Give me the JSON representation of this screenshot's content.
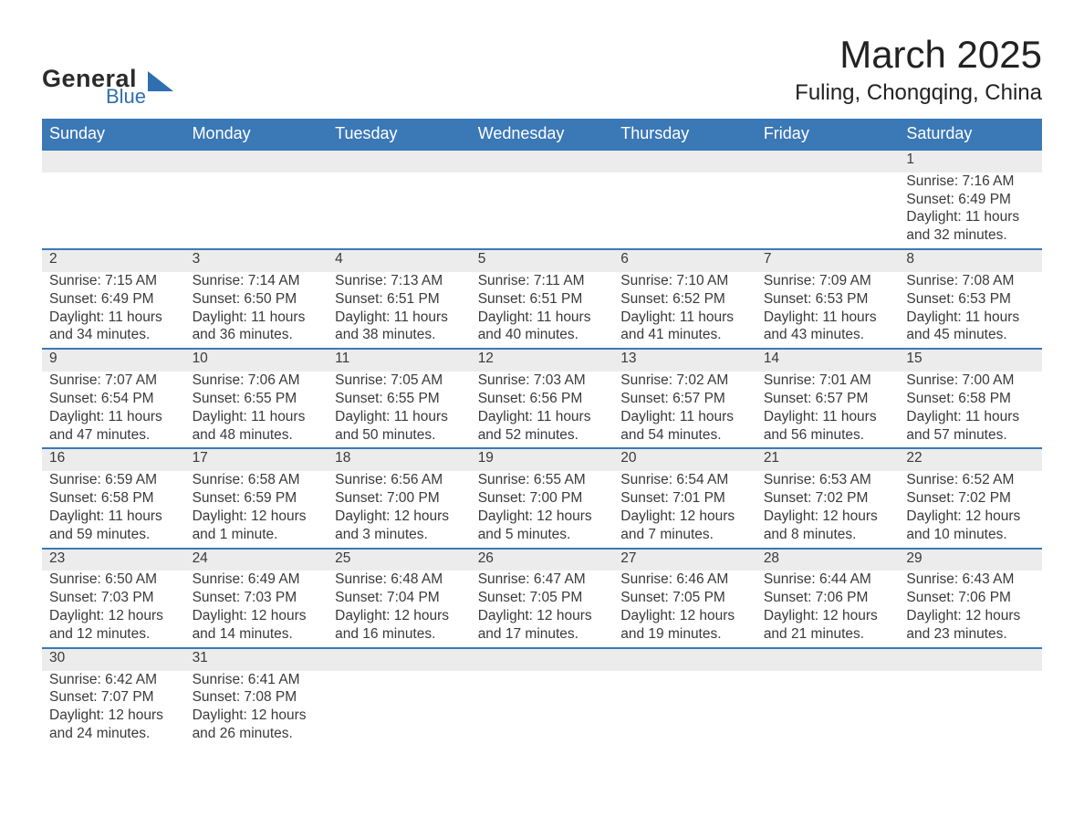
{
  "logo": {
    "text1": "General",
    "text2": "Blue",
    "shape_color": "#2f6eb0",
    "text_color": "#2b2b2b"
  },
  "title": "March 2025",
  "location": "Fuling, Chongqing, China",
  "colors": {
    "header_bg": "#3b78b6",
    "header_text": "#ffffff",
    "daynum_bg": "#ececec",
    "row_border": "#3b78b6",
    "body_text": "#3a3a3a"
  },
  "day_headers": [
    "Sunday",
    "Monday",
    "Tuesday",
    "Wednesday",
    "Thursday",
    "Friday",
    "Saturday"
  ],
  "weeks": [
    [
      null,
      null,
      null,
      null,
      null,
      null,
      {
        "n": "1",
        "sr": "Sunrise: 7:16 AM",
        "ss": "Sunset: 6:49 PM",
        "d1": "Daylight: 11 hours",
        "d2": "and 32 minutes."
      }
    ],
    [
      {
        "n": "2",
        "sr": "Sunrise: 7:15 AM",
        "ss": "Sunset: 6:49 PM",
        "d1": "Daylight: 11 hours",
        "d2": "and 34 minutes."
      },
      {
        "n": "3",
        "sr": "Sunrise: 7:14 AM",
        "ss": "Sunset: 6:50 PM",
        "d1": "Daylight: 11 hours",
        "d2": "and 36 minutes."
      },
      {
        "n": "4",
        "sr": "Sunrise: 7:13 AM",
        "ss": "Sunset: 6:51 PM",
        "d1": "Daylight: 11 hours",
        "d2": "and 38 minutes."
      },
      {
        "n": "5",
        "sr": "Sunrise: 7:11 AM",
        "ss": "Sunset: 6:51 PM",
        "d1": "Daylight: 11 hours",
        "d2": "and 40 minutes."
      },
      {
        "n": "6",
        "sr": "Sunrise: 7:10 AM",
        "ss": "Sunset: 6:52 PM",
        "d1": "Daylight: 11 hours",
        "d2": "and 41 minutes."
      },
      {
        "n": "7",
        "sr": "Sunrise: 7:09 AM",
        "ss": "Sunset: 6:53 PM",
        "d1": "Daylight: 11 hours",
        "d2": "and 43 minutes."
      },
      {
        "n": "8",
        "sr": "Sunrise: 7:08 AM",
        "ss": "Sunset: 6:53 PM",
        "d1": "Daylight: 11 hours",
        "d2": "and 45 minutes."
      }
    ],
    [
      {
        "n": "9",
        "sr": "Sunrise: 7:07 AM",
        "ss": "Sunset: 6:54 PM",
        "d1": "Daylight: 11 hours",
        "d2": "and 47 minutes."
      },
      {
        "n": "10",
        "sr": "Sunrise: 7:06 AM",
        "ss": "Sunset: 6:55 PM",
        "d1": "Daylight: 11 hours",
        "d2": "and 48 minutes."
      },
      {
        "n": "11",
        "sr": "Sunrise: 7:05 AM",
        "ss": "Sunset: 6:55 PM",
        "d1": "Daylight: 11 hours",
        "d2": "and 50 minutes."
      },
      {
        "n": "12",
        "sr": "Sunrise: 7:03 AM",
        "ss": "Sunset: 6:56 PM",
        "d1": "Daylight: 11 hours",
        "d2": "and 52 minutes."
      },
      {
        "n": "13",
        "sr": "Sunrise: 7:02 AM",
        "ss": "Sunset: 6:57 PM",
        "d1": "Daylight: 11 hours",
        "d2": "and 54 minutes."
      },
      {
        "n": "14",
        "sr": "Sunrise: 7:01 AM",
        "ss": "Sunset: 6:57 PM",
        "d1": "Daylight: 11 hours",
        "d2": "and 56 minutes."
      },
      {
        "n": "15",
        "sr": "Sunrise: 7:00 AM",
        "ss": "Sunset: 6:58 PM",
        "d1": "Daylight: 11 hours",
        "d2": "and 57 minutes."
      }
    ],
    [
      {
        "n": "16",
        "sr": "Sunrise: 6:59 AM",
        "ss": "Sunset: 6:58 PM",
        "d1": "Daylight: 11 hours",
        "d2": "and 59 minutes."
      },
      {
        "n": "17",
        "sr": "Sunrise: 6:58 AM",
        "ss": "Sunset: 6:59 PM",
        "d1": "Daylight: 12 hours",
        "d2": "and 1 minute."
      },
      {
        "n": "18",
        "sr": "Sunrise: 6:56 AM",
        "ss": "Sunset: 7:00 PM",
        "d1": "Daylight: 12 hours",
        "d2": "and 3 minutes."
      },
      {
        "n": "19",
        "sr": "Sunrise: 6:55 AM",
        "ss": "Sunset: 7:00 PM",
        "d1": "Daylight: 12 hours",
        "d2": "and 5 minutes."
      },
      {
        "n": "20",
        "sr": "Sunrise: 6:54 AM",
        "ss": "Sunset: 7:01 PM",
        "d1": "Daylight: 12 hours",
        "d2": "and 7 minutes."
      },
      {
        "n": "21",
        "sr": "Sunrise: 6:53 AM",
        "ss": "Sunset: 7:02 PM",
        "d1": "Daylight: 12 hours",
        "d2": "and 8 minutes."
      },
      {
        "n": "22",
        "sr": "Sunrise: 6:52 AM",
        "ss": "Sunset: 7:02 PM",
        "d1": "Daylight: 12 hours",
        "d2": "and 10 minutes."
      }
    ],
    [
      {
        "n": "23",
        "sr": "Sunrise: 6:50 AM",
        "ss": "Sunset: 7:03 PM",
        "d1": "Daylight: 12 hours",
        "d2": "and 12 minutes."
      },
      {
        "n": "24",
        "sr": "Sunrise: 6:49 AM",
        "ss": "Sunset: 7:03 PM",
        "d1": "Daylight: 12 hours",
        "d2": "and 14 minutes."
      },
      {
        "n": "25",
        "sr": "Sunrise: 6:48 AM",
        "ss": "Sunset: 7:04 PM",
        "d1": "Daylight: 12 hours",
        "d2": "and 16 minutes."
      },
      {
        "n": "26",
        "sr": "Sunrise: 6:47 AM",
        "ss": "Sunset: 7:05 PM",
        "d1": "Daylight: 12 hours",
        "d2": "and 17 minutes."
      },
      {
        "n": "27",
        "sr": "Sunrise: 6:46 AM",
        "ss": "Sunset: 7:05 PM",
        "d1": "Daylight: 12 hours",
        "d2": "and 19 minutes."
      },
      {
        "n": "28",
        "sr": "Sunrise: 6:44 AM",
        "ss": "Sunset: 7:06 PM",
        "d1": "Daylight: 12 hours",
        "d2": "and 21 minutes."
      },
      {
        "n": "29",
        "sr": "Sunrise: 6:43 AM",
        "ss": "Sunset: 7:06 PM",
        "d1": "Daylight: 12 hours",
        "d2": "and 23 minutes."
      }
    ],
    [
      {
        "n": "30",
        "sr": "Sunrise: 6:42 AM",
        "ss": "Sunset: 7:07 PM",
        "d1": "Daylight: 12 hours",
        "d2": "and 24 minutes."
      },
      {
        "n": "31",
        "sr": "Sunrise: 6:41 AM",
        "ss": "Sunset: 7:08 PM",
        "d1": "Daylight: 12 hours",
        "d2": "and 26 minutes."
      },
      null,
      null,
      null,
      null,
      null
    ]
  ]
}
